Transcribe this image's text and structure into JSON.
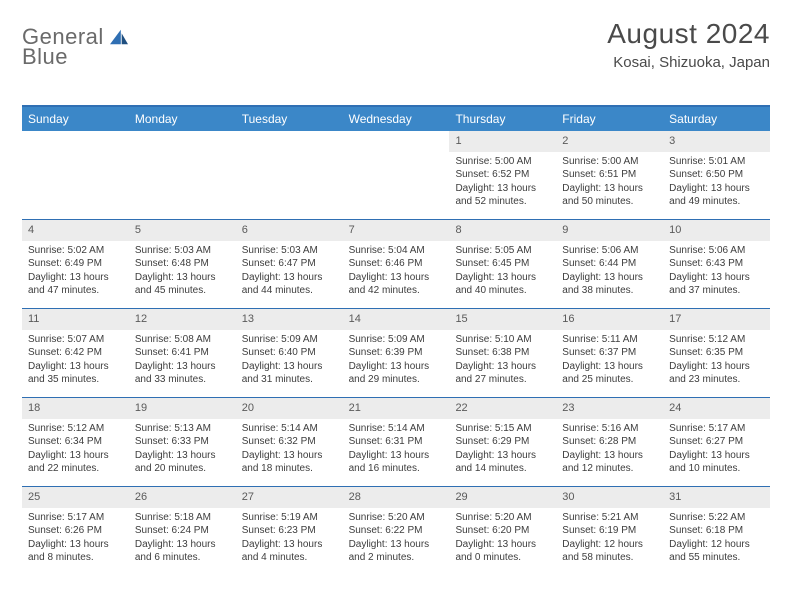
{
  "brand": {
    "word1": "General",
    "word2": "Blue"
  },
  "title": "August 2024",
  "location": "Kosai, Shizuoka, Japan",
  "colors": {
    "header_bar": "#3b87c8",
    "accent": "#2f6fb3",
    "daynum_bg": "#ececec",
    "text": "#333333",
    "logo_gray": "#6a6a6a"
  },
  "dow": [
    "Sunday",
    "Monday",
    "Tuesday",
    "Wednesday",
    "Thursday",
    "Friday",
    "Saturday"
  ],
  "weeks": [
    [
      null,
      null,
      null,
      null,
      {
        "n": "1",
        "sr": "5:00 AM",
        "ss": "6:52 PM",
        "dl1": "Daylight: 13 hours",
        "dl2": "and 52 minutes."
      },
      {
        "n": "2",
        "sr": "5:00 AM",
        "ss": "6:51 PM",
        "dl1": "Daylight: 13 hours",
        "dl2": "and 50 minutes."
      },
      {
        "n": "3",
        "sr": "5:01 AM",
        "ss": "6:50 PM",
        "dl1": "Daylight: 13 hours",
        "dl2": "and 49 minutes."
      }
    ],
    [
      {
        "n": "4",
        "sr": "5:02 AM",
        "ss": "6:49 PM",
        "dl1": "Daylight: 13 hours",
        "dl2": "and 47 minutes."
      },
      {
        "n": "5",
        "sr": "5:03 AM",
        "ss": "6:48 PM",
        "dl1": "Daylight: 13 hours",
        "dl2": "and 45 minutes."
      },
      {
        "n": "6",
        "sr": "5:03 AM",
        "ss": "6:47 PM",
        "dl1": "Daylight: 13 hours",
        "dl2": "and 44 minutes."
      },
      {
        "n": "7",
        "sr": "5:04 AM",
        "ss": "6:46 PM",
        "dl1": "Daylight: 13 hours",
        "dl2": "and 42 minutes."
      },
      {
        "n": "8",
        "sr": "5:05 AM",
        "ss": "6:45 PM",
        "dl1": "Daylight: 13 hours",
        "dl2": "and 40 minutes."
      },
      {
        "n": "9",
        "sr": "5:06 AM",
        "ss": "6:44 PM",
        "dl1": "Daylight: 13 hours",
        "dl2": "and 38 minutes."
      },
      {
        "n": "10",
        "sr": "5:06 AM",
        "ss": "6:43 PM",
        "dl1": "Daylight: 13 hours",
        "dl2": "and 37 minutes."
      }
    ],
    [
      {
        "n": "11",
        "sr": "5:07 AM",
        "ss": "6:42 PM",
        "dl1": "Daylight: 13 hours",
        "dl2": "and 35 minutes."
      },
      {
        "n": "12",
        "sr": "5:08 AM",
        "ss": "6:41 PM",
        "dl1": "Daylight: 13 hours",
        "dl2": "and 33 minutes."
      },
      {
        "n": "13",
        "sr": "5:09 AM",
        "ss": "6:40 PM",
        "dl1": "Daylight: 13 hours",
        "dl2": "and 31 minutes."
      },
      {
        "n": "14",
        "sr": "5:09 AM",
        "ss": "6:39 PM",
        "dl1": "Daylight: 13 hours",
        "dl2": "and 29 minutes."
      },
      {
        "n": "15",
        "sr": "5:10 AM",
        "ss": "6:38 PM",
        "dl1": "Daylight: 13 hours",
        "dl2": "and 27 minutes."
      },
      {
        "n": "16",
        "sr": "5:11 AM",
        "ss": "6:37 PM",
        "dl1": "Daylight: 13 hours",
        "dl2": "and 25 minutes."
      },
      {
        "n": "17",
        "sr": "5:12 AM",
        "ss": "6:35 PM",
        "dl1": "Daylight: 13 hours",
        "dl2": "and 23 minutes."
      }
    ],
    [
      {
        "n": "18",
        "sr": "5:12 AM",
        "ss": "6:34 PM",
        "dl1": "Daylight: 13 hours",
        "dl2": "and 22 minutes."
      },
      {
        "n": "19",
        "sr": "5:13 AM",
        "ss": "6:33 PM",
        "dl1": "Daylight: 13 hours",
        "dl2": "and 20 minutes."
      },
      {
        "n": "20",
        "sr": "5:14 AM",
        "ss": "6:32 PM",
        "dl1": "Daylight: 13 hours",
        "dl2": "and 18 minutes."
      },
      {
        "n": "21",
        "sr": "5:14 AM",
        "ss": "6:31 PM",
        "dl1": "Daylight: 13 hours",
        "dl2": "and 16 minutes."
      },
      {
        "n": "22",
        "sr": "5:15 AM",
        "ss": "6:29 PM",
        "dl1": "Daylight: 13 hours",
        "dl2": "and 14 minutes."
      },
      {
        "n": "23",
        "sr": "5:16 AM",
        "ss": "6:28 PM",
        "dl1": "Daylight: 13 hours",
        "dl2": "and 12 minutes."
      },
      {
        "n": "24",
        "sr": "5:17 AM",
        "ss": "6:27 PM",
        "dl1": "Daylight: 13 hours",
        "dl2": "and 10 minutes."
      }
    ],
    [
      {
        "n": "25",
        "sr": "5:17 AM",
        "ss": "6:26 PM",
        "dl1": "Daylight: 13 hours",
        "dl2": "and 8 minutes."
      },
      {
        "n": "26",
        "sr": "5:18 AM",
        "ss": "6:24 PM",
        "dl1": "Daylight: 13 hours",
        "dl2": "and 6 minutes."
      },
      {
        "n": "27",
        "sr": "5:19 AM",
        "ss": "6:23 PM",
        "dl1": "Daylight: 13 hours",
        "dl2": "and 4 minutes."
      },
      {
        "n": "28",
        "sr": "5:20 AM",
        "ss": "6:22 PM",
        "dl1": "Daylight: 13 hours",
        "dl2": "and 2 minutes."
      },
      {
        "n": "29",
        "sr": "5:20 AM",
        "ss": "6:20 PM",
        "dl1": "Daylight: 13 hours",
        "dl2": "and 0 minutes."
      },
      {
        "n": "30",
        "sr": "5:21 AM",
        "ss": "6:19 PM",
        "dl1": "Daylight: 12 hours",
        "dl2": "and 58 minutes."
      },
      {
        "n": "31",
        "sr": "5:22 AM",
        "ss": "6:18 PM",
        "dl1": "Daylight: 12 hours",
        "dl2": "and 55 minutes."
      }
    ]
  ],
  "labels": {
    "sunrise": "Sunrise: ",
    "sunset": "Sunset: "
  }
}
